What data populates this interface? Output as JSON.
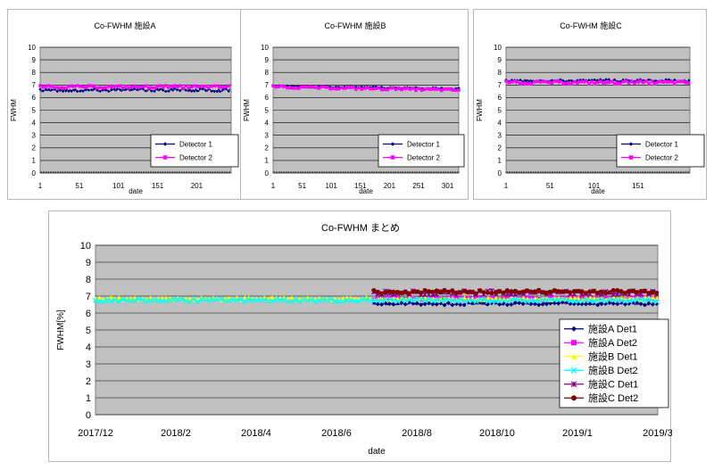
{
  "chart_data": [
    {
      "id": "a",
      "type": "line",
      "title": "Co-FWHM  施設A",
      "xlabel": "date",
      "ylabel": "FWHM",
      "ylim": [
        0,
        10
      ],
      "yticks": [
        0,
        1,
        2,
        3,
        4,
        5,
        6,
        7,
        8,
        9,
        10
      ],
      "xlim": [
        1,
        245
      ],
      "xticks": [
        1,
        51,
        101,
        151,
        201
      ],
      "series": [
        {
          "name": "Detector 1",
          "level": 6.6,
          "noise": 0.12,
          "color": "#000080",
          "marker": "diamond"
        },
        {
          "name": "Detector 2",
          "level": 6.85,
          "noise": 0.1,
          "color": "#ff00ff",
          "marker": "square"
        }
      ]
    },
    {
      "id": "b",
      "type": "line",
      "title": "Co-FWHM  施設B",
      "xlabel": "date",
      "ylabel": "FWHM",
      "ylim": [
        0,
        10
      ],
      "yticks": [
        0,
        1,
        2,
        3,
        4,
        5,
        6,
        7,
        8,
        9,
        10
      ],
      "xlim": [
        1,
        320
      ],
      "xticks": [
        1,
        51,
        101,
        151,
        201,
        251,
        301
      ],
      "series": [
        {
          "name": "Detector 1",
          "start": 6.92,
          "end": 6.7,
          "noise": 0.07,
          "color": "#000080",
          "marker": "diamond"
        },
        {
          "name": "Detector 2",
          "start": 6.85,
          "end": 6.6,
          "noise": 0.09,
          "color": "#ff00ff",
          "marker": "square"
        }
      ]
    },
    {
      "id": "c",
      "type": "line",
      "title": "Co-FWHM  施設C",
      "xlabel": "date",
      "ylabel": "FWHM",
      "ylim": [
        0,
        10
      ],
      "yticks": [
        0,
        1,
        2,
        3,
        4,
        5,
        6,
        7,
        8,
        9,
        10
      ],
      "xlim": [
        1,
        210
      ],
      "xticks": [
        1,
        51,
        101,
        151
      ],
      "series": [
        {
          "name": "Detector 1",
          "level": 7.35,
          "noise": 0.1,
          "color": "#000080",
          "marker": "diamond"
        },
        {
          "name": "Detector 2",
          "level": 7.2,
          "noise": 0.12,
          "color": "#ff00ff",
          "marker": "square"
        }
      ]
    },
    {
      "id": "summary",
      "type": "line",
      "title": "Co-FWHM  まとめ",
      "xlabel": "date",
      "ylabel": "FWHM[%]",
      "ylim": [
        0,
        10
      ],
      "yticks": [
        0,
        1,
        2,
        3,
        4,
        5,
        6,
        7,
        8,
        9,
        10
      ],
      "xticks": [
        "2017/12",
        "2018/2",
        "2018/4",
        "2018/6",
        "2018/8",
        "2018/10",
        "2019/1",
        "2019/3"
      ],
      "series": [
        {
          "name": "施設A  Det1",
          "range": [
            0.495,
            1.0
          ],
          "level": 6.55,
          "noise": 0.08,
          "color": "#000080",
          "marker": "diamond"
        },
        {
          "name": "施設A  Det2",
          "range": [
            0.495,
            1.0
          ],
          "level": 6.85,
          "noise": 0.08,
          "color": "#ff00ff",
          "marker": "square"
        },
        {
          "name": "施設B  Det1",
          "range": [
            0.0,
            1.0
          ],
          "level": 6.85,
          "noise": 0.08,
          "color": "#ffff00",
          "marker": "triangle"
        },
        {
          "name": "施設B  Det2",
          "range": [
            0.0,
            1.0
          ],
          "level": 6.75,
          "noise": 0.08,
          "color": "#00ffff",
          "marker": "x"
        },
        {
          "name": "施設C  Det1",
          "range": [
            0.495,
            1.0
          ],
          "level": 7.2,
          "noise": 0.12,
          "color": "#800080",
          "marker": "star"
        },
        {
          "name": "施設C  Det2",
          "range": [
            0.495,
            1.0
          ],
          "level": 7.25,
          "noise": 0.1,
          "color": "#800000",
          "marker": "circle"
        }
      ]
    }
  ]
}
